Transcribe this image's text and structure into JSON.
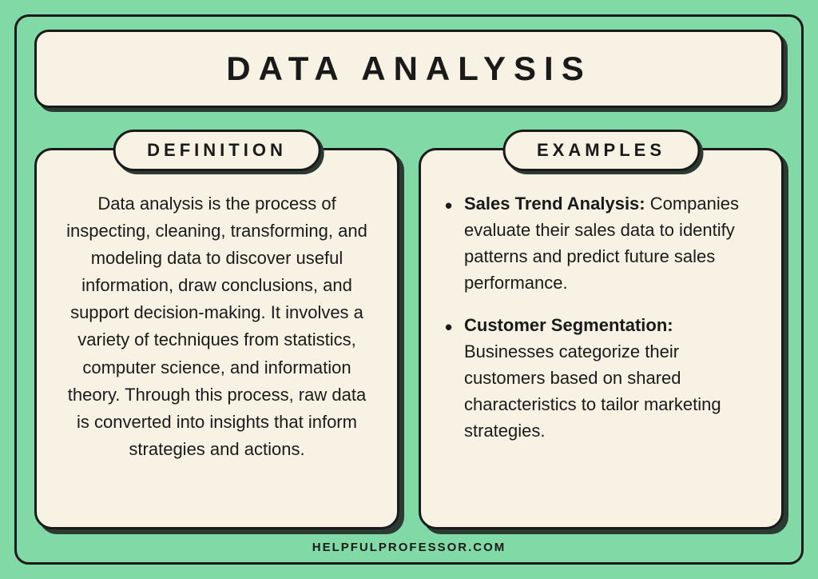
{
  "title": "DATA ANALYSIS",
  "definition": {
    "header": "DEFINITION",
    "body": "Data analysis is the process of inspecting, cleaning, transforming, and modeling data to discover useful information, draw conclusions, and support decision-making. It involves a variety of techniques from statistics, computer science, and information theory. Through this process, raw data is converted into insights that inform strategies and actions."
  },
  "examples": {
    "header": "EXAMPLES",
    "items": [
      {
        "title": "Sales Trend Analysis:",
        "body": " Companies evaluate their sales data to identify patterns and predict future sales performance."
      },
      {
        "title": "Customer Segmentation:",
        "body": " Businesses categorize their customers based on shared characteristics to tailor marketing strategies."
      }
    ]
  },
  "footer": "HELPFULPROFESSOR.COM",
  "colors": {
    "background": "#81d9a6",
    "card_bg": "#f8f2e5",
    "border": "#1a1a1a",
    "shadow": "#2b3b33",
    "text": "#1a1a1a"
  }
}
